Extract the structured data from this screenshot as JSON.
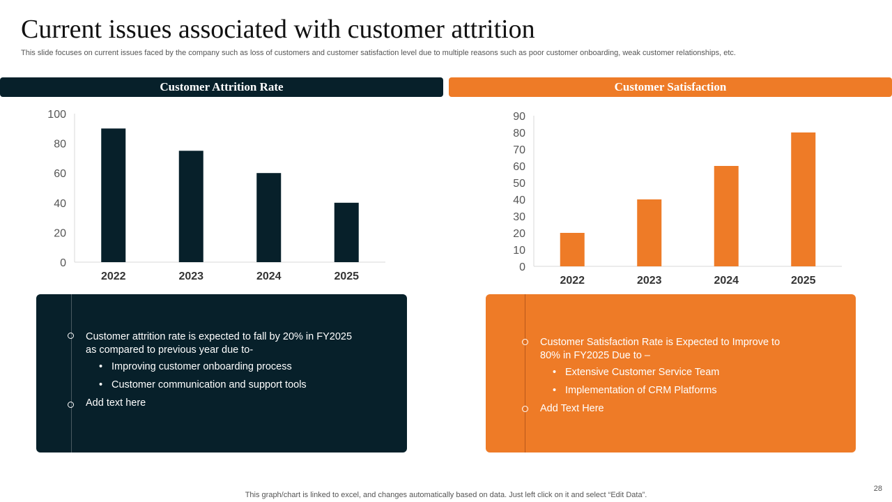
{
  "title": "Current issues associated with customer attrition",
  "subtitle": "This slide focuses on current issues faced by the company such as loss of customers and customer satisfaction level due to multiple reasons such as poor customer onboarding, weak customer relationships, etc.",
  "left_panel": {
    "header": "Customer Attrition Rate",
    "main_point": "Customer attrition rate is expected to fall by 20% in FY2025 as compared to previous year due to-",
    "sub_points": [
      "Improving customer onboarding process",
      "Customer communication and support tools"
    ],
    "extra_point": "Add text here"
  },
  "right_panel": {
    "header": "Customer Satisfaction",
    "main_point": "Customer Satisfaction Rate is Expected to Improve to 80% in FY2025 Due to –",
    "sub_points": [
      "Extensive Customer Service Team",
      "Implementation of CRM Platforms"
    ],
    "extra_point": "Add Text Here"
  },
  "colors": {
    "dark": "#07202a",
    "accent": "#ee7b27"
  },
  "chart_data": [
    {
      "type": "bar",
      "title": "Customer Attrition Rate",
      "categories": [
        "2022",
        "2023",
        "2024",
        "2025"
      ],
      "values": [
        90,
        75,
        60,
        40
      ],
      "ylim": [
        0,
        100
      ],
      "yticks": [
        0,
        20,
        40,
        60,
        80,
        100
      ],
      "color": "#07202a",
      "grid": false
    },
    {
      "type": "bar",
      "title": "Customer Satisfaction",
      "categories": [
        "2022",
        "2023",
        "2024",
        "2025"
      ],
      "values": [
        20,
        40,
        60,
        80
      ],
      "ylim": [
        0,
        90
      ],
      "yticks": [
        0,
        10,
        20,
        30,
        40,
        50,
        60,
        70,
        80,
        90
      ],
      "color": "#ee7b27",
      "grid": false
    }
  ],
  "footer": "This graph/chart is linked to excel, and changes automatically based on data. Just left click on it and select “Edit Data”.",
  "page_number": "28"
}
